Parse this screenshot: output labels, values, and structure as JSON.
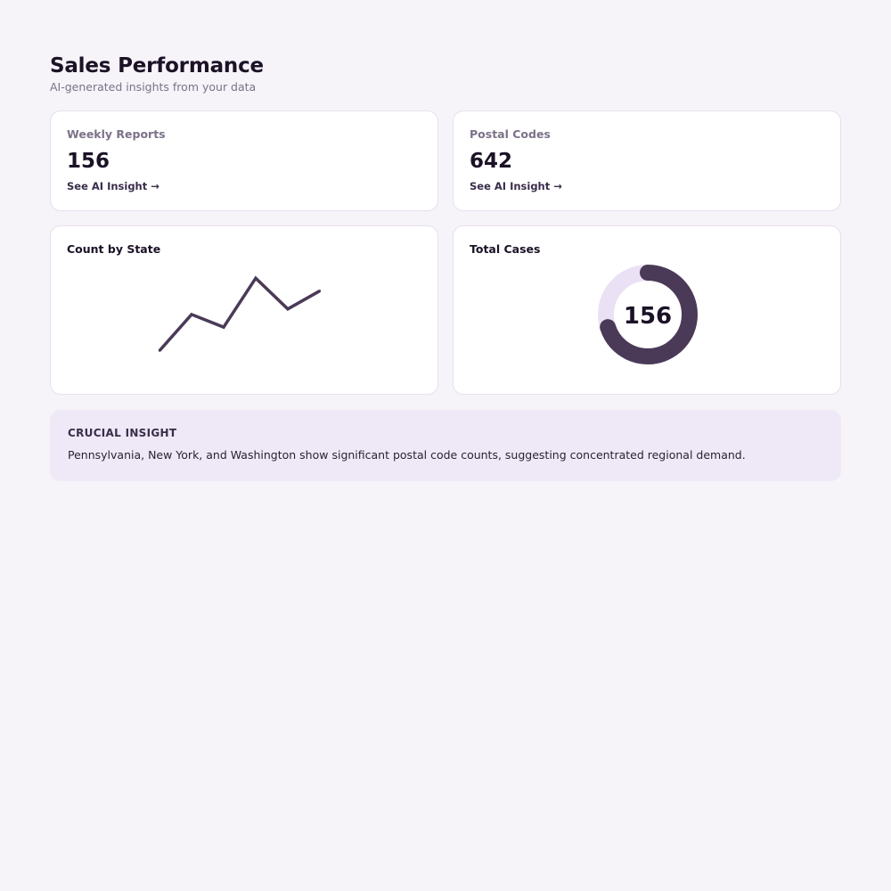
{
  "header": {
    "title": "Sales Performance",
    "subtitle": "AI-generated insights from your data"
  },
  "kpis": [
    {
      "label": "Weekly Reports",
      "value": "156",
      "link": "See AI Insight →"
    },
    {
      "label": "Postal Codes",
      "value": "642",
      "link": "See AI Insight →"
    }
  ],
  "line_chart": {
    "title": "Count by State"
  },
  "donut_chart": {
    "title": "Total Cases",
    "center_value": "156"
  },
  "insight": {
    "heading": "CRUCIAL INSIGHT",
    "text": "Pennsylvania, New York, and Washington show significant postal code counts, suggesting concentrated regional demand."
  },
  "colors": {
    "accent": "#4a3a57",
    "track": "#ebe1f5",
    "background": "#f6f3f9",
    "insight_bg": "#efe9f7"
  },
  "chart_data": [
    {
      "type": "line",
      "title": "Count by State",
      "x": [
        1,
        2,
        3,
        4,
        5,
        6
      ],
      "values": [
        10,
        30,
        23,
        50,
        33,
        43
      ],
      "ylim": [
        0,
        55
      ],
      "grid": false,
      "xlabel": "",
      "ylabel": ""
    },
    {
      "type": "pie",
      "title": "Total Cases",
      "center_label": "156",
      "values": [
        0.7,
        0.3
      ]
    }
  ]
}
